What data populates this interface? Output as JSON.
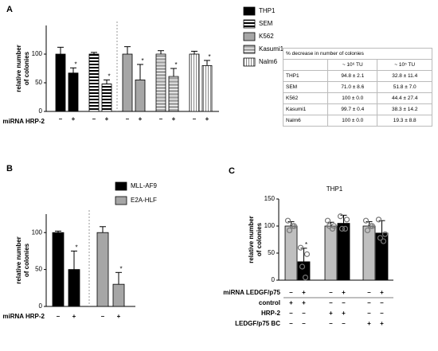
{
  "chart_data": [
    {
      "type": "bar",
      "panel": "A",
      "ylabel": "relative number of colonies",
      "xlabel": "miRNA HRP-2",
      "categories": [
        "–",
        "+"
      ],
      "ylim": [
        0,
        150
      ],
      "yticks": [
        0,
        50,
        100
      ],
      "series": [
        {
          "name": "THP1",
          "color": "#000000",
          "pattern": "solid",
          "values": [
            100,
            67
          ],
          "errors": [
            12,
            9
          ],
          "significance": [
            null,
            "*"
          ]
        },
        {
          "name": "SEM",
          "color": "#000000",
          "pattern": "horizontal-stripes",
          "values": [
            100,
            48
          ],
          "errors": [
            3,
            7
          ],
          "significance": [
            null,
            "*"
          ]
        },
        {
          "name": "K562",
          "color": "#a6a6a6",
          "pattern": "solid",
          "values": [
            100,
            55
          ],
          "errors": [
            13,
            27
          ],
          "significance": [
            null,
            "*"
          ]
        },
        {
          "name": "Kasumi1",
          "color": "#a6a6a6",
          "pattern": "gray-horizontal-stripes",
          "values": [
            100,
            61
          ],
          "errors": [
            6,
            14
          ],
          "significance": [
            null,
            "*"
          ]
        },
        {
          "name": "Nalm6",
          "color": "#ffffff",
          "pattern": "vertical-stripes",
          "values": [
            100,
            80
          ],
          "errors": [
            5,
            9
          ],
          "significance": [
            null,
            "*"
          ]
        }
      ]
    },
    {
      "type": "bar",
      "panel": "B",
      "ylabel": "relative number of colonies",
      "xlabel": "miRNA HRP-2",
      "categories": [
        "–",
        "+"
      ],
      "ylim": [
        0,
        125
      ],
      "yticks": [
        0,
        50,
        100
      ],
      "series": [
        {
          "name": "MLL-AF9",
          "color": "#000000",
          "pattern": "solid",
          "values": [
            100,
            50
          ],
          "errors": [
            2,
            25
          ],
          "significance": [
            null,
            "*"
          ]
        },
        {
          "name": "E2A-HLF",
          "color": "#a6a6a6",
          "pattern": "solid",
          "values": [
            100,
            30
          ],
          "errors": [
            8,
            16
          ],
          "significance": [
            null,
            "*"
          ]
        }
      ]
    },
    {
      "type": "bar",
      "panel": "C",
      "title": "THP1",
      "ylabel": "relative number of colonies",
      "ylim": [
        0,
        150
      ],
      "yticks": [
        0,
        50,
        100,
        150
      ],
      "series": [
        {
          "color": "#bfbfbf",
          "pattern": "solid",
          "values": [
            100,
            100,
            100
          ],
          "errors": [
            8,
            7,
            8
          ],
          "significance": [
            null,
            null,
            null
          ],
          "points": [
            [
              110,
              100,
              92,
              100
            ],
            [
              110,
              100,
              100,
              95
            ],
            [
              110,
              100,
              92,
              100
            ]
          ]
        },
        {
          "color": "#000000",
          "pattern": "solid",
          "values": [
            34,
            105,
            87
          ],
          "errors": [
            25,
            15,
            23
          ],
          "significance": [
            "*",
            null,
            null
          ],
          "points": [
            [
              60,
              48,
              25,
              5
            ],
            [
              118,
              112,
              95,
              95
            ],
            [
              112,
              85,
              78,
              72
            ]
          ]
        }
      ],
      "conditions": [
        {
          "name": "miRNA LEDGF/p75",
          "values": [
            "–",
            "+",
            "–",
            "+",
            "–",
            "+"
          ]
        },
        {
          "name": "control",
          "values": [
            "+",
            "+",
            "–",
            "–",
            "–",
            "–"
          ]
        },
        {
          "name": "HRP-2",
          "values": [
            "–",
            "–",
            "+",
            "+",
            "–",
            "–"
          ]
        },
        {
          "name": "LEDGF/p75 BC",
          "values": [
            "–",
            "–",
            "–",
            "–",
            "+",
            "+"
          ]
        }
      ]
    }
  ],
  "table": {
    "title": "% decrease in number of colonies",
    "header": [
      "~ 10⁶ TU",
      "~ 10⁵ TU"
    ],
    "rows": [
      [
        "THP1",
        "94.8 ± 2.1",
        "32.8 ± 11.4"
      ],
      [
        "SEM",
        "71.0 ± 8.6",
        "51.8 ± 7.0"
      ],
      [
        "K562",
        "100 ± 0.0",
        "44.4 ± 27.4"
      ],
      [
        "Kasumi1",
        "99.7 ± 0.4",
        "38.3 ± 14.2"
      ],
      [
        "Nalm6",
        "100 ± 0.0",
        "19.3 ± 8.8"
      ]
    ]
  }
}
